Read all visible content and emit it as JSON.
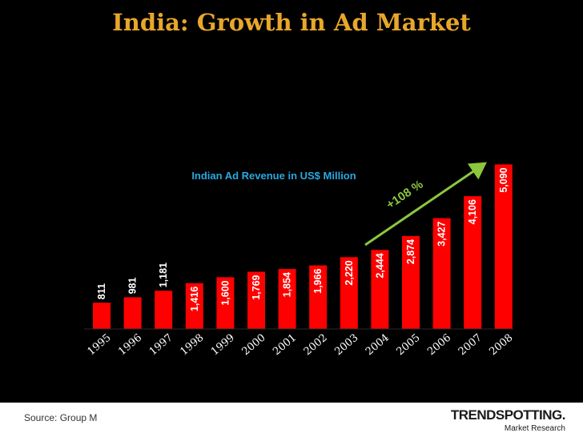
{
  "chart_data": {
    "type": "bar",
    "title": "India: Growth in Ad Market",
    "subtitle": "Indian Ad Revenue in US$ Million",
    "categories": [
      "1995",
      "1996",
      "1997",
      "1998",
      "1999",
      "2000",
      "2001",
      "2002",
      "2003",
      "2004",
      "2005",
      "2006",
      "2007",
      "2008"
    ],
    "values": [
      811,
      981,
      1181,
      1416,
      1600,
      1769,
      1854,
      1966,
      2220,
      2444,
      2874,
      3427,
      4106,
      5090
    ],
    "value_labels": [
      "811",
      "981",
      "1,181",
      "1,416",
      "1,600",
      "1,769",
      "1,854",
      "1,966",
      "2,220",
      "2,444",
      "2,874",
      "3,427",
      "4,106",
      "5,090"
    ],
    "xlabel": "",
    "ylabel": "",
    "ylim": [
      0,
      5100
    ],
    "annotation": "+108 %",
    "colors": {
      "bar": "#ff0000",
      "title": "#e8a72a",
      "subtitle": "#29a8e0",
      "arrow": "#8cc63f",
      "background": "#000000"
    }
  },
  "footer": {
    "source": "Source: Group M",
    "logo_text": "TRENDSPOTTING.",
    "logo_sub": "Market Research"
  }
}
